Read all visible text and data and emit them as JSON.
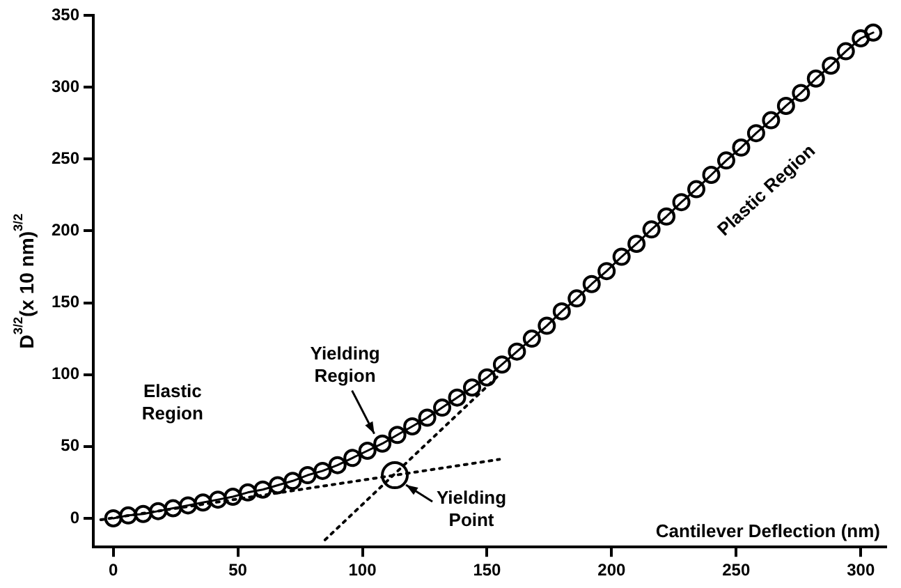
{
  "chart_data": {
    "type": "line",
    "xlabel": "Cantilever Deflection (nm)",
    "ylabel": "D$^{3/2}$(x 10 nm)$^{3/2}$",
    "xlim": [
      -8,
      310
    ],
    "ylim": [
      -20,
      350
    ],
    "xticks": [
      0,
      50,
      100,
      150,
      200,
      250,
      300
    ],
    "yticks": [
      0,
      50,
      100,
      150,
      200,
      250,
      300,
      350
    ],
    "grid": false,
    "legend": false,
    "marker": "circle",
    "line_style": "solid",
    "series": [
      {
        "color": "#000000",
        "x": [
          0,
          6,
          12,
          18,
          24,
          30,
          36,
          42,
          48,
          54,
          60,
          66,
          72,
          78,
          84,
          90,
          96,
          102,
          108,
          114,
          120,
          126,
          132,
          138,
          144,
          150,
          156,
          162,
          168,
          174,
          180,
          186,
          192,
          198,
          204,
          210,
          216,
          222,
          228,
          234,
          240,
          246,
          252,
          258,
          264,
          270,
          276,
          282,
          288,
          294,
          300,
          305
        ],
        "values": [
          0,
          2,
          3,
          5,
          7,
          9,
          11,
          13,
          15,
          18,
          20,
          23,
          26,
          30,
          33,
          37,
          42,
          47,
          52,
          58,
          64,
          70,
          77,
          84,
          91,
          98,
          107,
          116,
          125,
          134,
          144,
          153,
          163,
          172,
          182,
          191,
          201,
          210,
          220,
          229,
          239,
          249,
          258,
          268,
          277,
          287,
          296,
          306,
          315,
          325,
          334,
          338
        ]
      },
      {
        "type": "line",
        "color": "#000000",
        "marker": "none",
        "line_style": "dotted",
        "x": [
          -5,
          155
        ],
        "values": [
          -1,
          41
        ]
      },
      {
        "type": "line",
        "color": "#000000",
        "marker": "none",
        "line_style": "dotted",
        "x": [
          85,
          155
        ],
        "values": [
          -15,
          100
        ]
      },
      {
        "type": "scatter",
        "color": "#000000",
        "x": [
          113
        ],
        "values": [
          30
        ]
      }
    ],
    "annotations": [
      "Elastic Region",
      {
        "text": "Yielding Region",
        "x": 107,
        "y": 53
      },
      {
        "text": "Yielding Point",
        "x": 113,
        "y": 30
      },
      "Plastic Region"
    ]
  }
}
